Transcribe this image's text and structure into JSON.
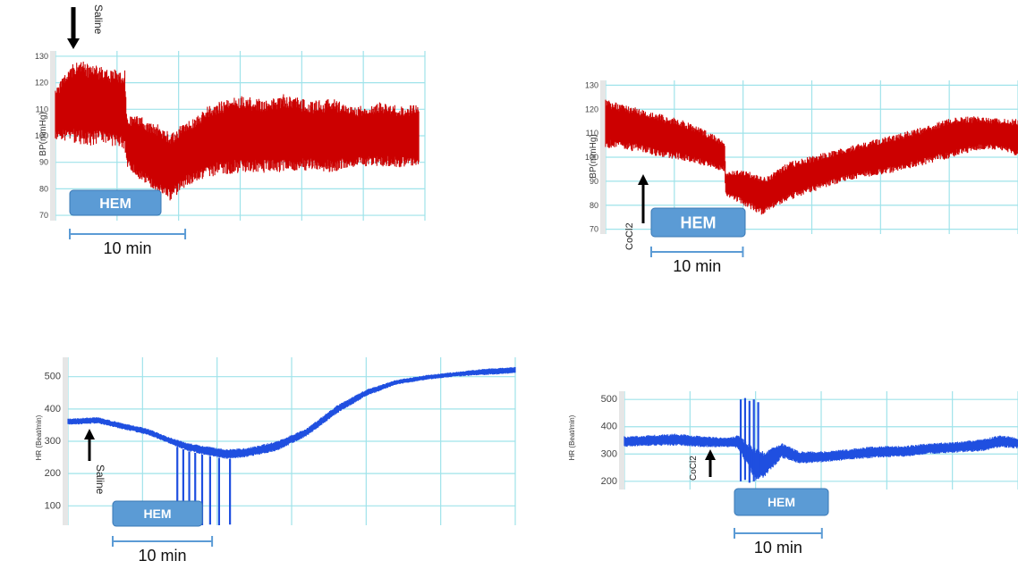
{
  "chart_data": [
    {
      "id": "bp-saline",
      "type": "line",
      "ylabel": "BP(mmHg)",
      "yticks": [
        "70",
        "80",
        "90",
        "100",
        "110",
        "120",
        "130"
      ],
      "ylim": [
        68,
        132
      ],
      "xlim": [
        0,
        32
      ],
      "line_color": "#cc0000",
      "grid": true,
      "grid_color": "#9fe3ea",
      "injection": {
        "label": "Saline",
        "time": 0.5,
        "arrow": "down"
      },
      "hem": {
        "label": "HEM",
        "start": 0,
        "end": 10
      },
      "scale_bar": {
        "label": "10 min",
        "minutes": 10
      },
      "series": [
        {
          "x": [
            0,
            1,
            2,
            3,
            4,
            5,
            6,
            6.2,
            7,
            8,
            9,
            10,
            11,
            12,
            13,
            14,
            16,
            18,
            20,
            22,
            24,
            26,
            28,
            30,
            31.5
          ],
          "upper": [
            117,
            126,
            129,
            127,
            126,
            125,
            125,
            107,
            108,
            106,
            104,
            101,
            105,
            107,
            111,
            113,
            115,
            114,
            116,
            113,
            114,
            111,
            113,
            111,
            112
          ],
          "lower": [
            98,
            98,
            97,
            96,
            97,
            96,
            95,
            88,
            84,
            81,
            78,
            75,
            80,
            82,
            84,
            85,
            86,
            86,
            86,
            87,
            86,
            88,
            88,
            88,
            89
          ]
        }
      ]
    },
    {
      "id": "bp-cocl2",
      "type": "line",
      "ylabel": "BP(mmHg)",
      "yticks": [
        "70",
        "80",
        "90",
        "100",
        "110",
        "120",
        "130"
      ],
      "ylim": [
        68,
        132
      ],
      "xlim": [
        0,
        45
      ],
      "line_color": "#cc0000",
      "grid": true,
      "grid_color": "#9fe3ea",
      "injection": {
        "label": "CoCl2",
        "time": 4,
        "arrow": "up"
      },
      "hem": {
        "label": "HEM",
        "start": 5,
        "end": 15
      },
      "scale_bar": {
        "label": "10 min",
        "minutes": 10
      },
      "series": [
        {
          "x": [
            0,
            2,
            4,
            6,
            8,
            10,
            12,
            13,
            13.1,
            15,
            17,
            18,
            20,
            23,
            26,
            29,
            32,
            35,
            38,
            41,
            43,
            45
          ],
          "upper": [
            124,
            122,
            120,
            118,
            116,
            113,
            109,
            106,
            94,
            95,
            92,
            93,
            98,
            101,
            104,
            107,
            110,
            113,
            117,
            117,
            116,
            116
          ],
          "lower": [
            104,
            103,
            102,
            100,
            99,
            97,
            95,
            94,
            84,
            80,
            76,
            78,
            82,
            86,
            90,
            92,
            94,
            97,
            100,
            103,
            103,
            100
          ]
        }
      ]
    },
    {
      "id": "hr-saline",
      "type": "line",
      "ylabel": "HR (Beat/min)",
      "yticks": [
        "100",
        "200",
        "300",
        "400",
        "500"
      ],
      "ylim": [
        40,
        560
      ],
      "xlim": [
        0,
        45
      ],
      "line_color": "#1f4fe0",
      "grid": true,
      "grid_color": "#9fe3ea",
      "injection": {
        "label": "Saline",
        "time": 2,
        "arrow": "up"
      },
      "hem": {
        "label": "HEM",
        "start": 4.5,
        "end": 14.5
      },
      "scale_bar": {
        "label": "10 min",
        "minutes": 10
      },
      "series": [
        {
          "x": [
            0,
            3,
            5,
            8,
            10,
            12,
            14,
            16,
            18,
            21,
            24,
            27,
            30,
            33,
            36,
            39,
            42,
            45
          ],
          "upper": [
            370,
            375,
            360,
            340,
            315,
            295,
            285,
            275,
            280,
            300,
            340,
            410,
            460,
            490,
            505,
            515,
            525,
            530
          ],
          "lower": [
            350,
            355,
            340,
            320,
            295,
            270,
            255,
            245,
            250,
            270,
            315,
            385,
            440,
            475,
            490,
            500,
            505,
            510
          ]
        }
      ],
      "spikes": {
        "x": [
          11,
          11.6,
          12.2,
          12.8,
          13.5,
          14.3,
          15.2,
          16.3
        ],
        "low": [
          40,
          42,
          40,
          45,
          40,
          42,
          40,
          42
        ]
      }
    },
    {
      "id": "hr-cocl2",
      "type": "line",
      "ylabel": "HR (Beat/min)",
      "yticks": [
        "200",
        "300",
        "400",
        "500"
      ],
      "ylim": [
        170,
        530
      ],
      "xlim": [
        0,
        45
      ],
      "line_color": "#1f4fe0",
      "grid": true,
      "grid_color": "#9fe3ea",
      "injection": {
        "label": "CoCl2",
        "time": 8,
        "arrow": "up"
      },
      "hem": {
        "label": "HEM",
        "start": 10.5,
        "end": 20.5
      },
      "scale_bar": {
        "label": "10 min",
        "minutes": 10
      },
      "series": [
        {
          "x": [
            0,
            3,
            6,
            9,
            12,
            13,
            15,
            16,
            18,
            20,
            23,
            26,
            29,
            32,
            35,
            38,
            41,
            43,
            45
          ],
          "upper": [
            365,
            370,
            375,
            365,
            360,
            370,
            320,
            310,
            340,
            310,
            310,
            320,
            330,
            330,
            340,
            345,
            355,
            370,
            360
          ],
          "lower": [
            325,
            330,
            330,
            325,
            325,
            320,
            200,
            215,
            285,
            265,
            270,
            280,
            285,
            290,
            300,
            305,
            310,
            325,
            320
          ]
        }
      ],
      "spikes": {
        "x": [
          13.3,
          13.8,
          14.3,
          14.8,
          15.3
        ],
        "low": [
          200,
          205,
          195,
          200,
          210
        ],
        "high": [
          500,
          505,
          495,
          500,
          490
        ]
      }
    }
  ]
}
